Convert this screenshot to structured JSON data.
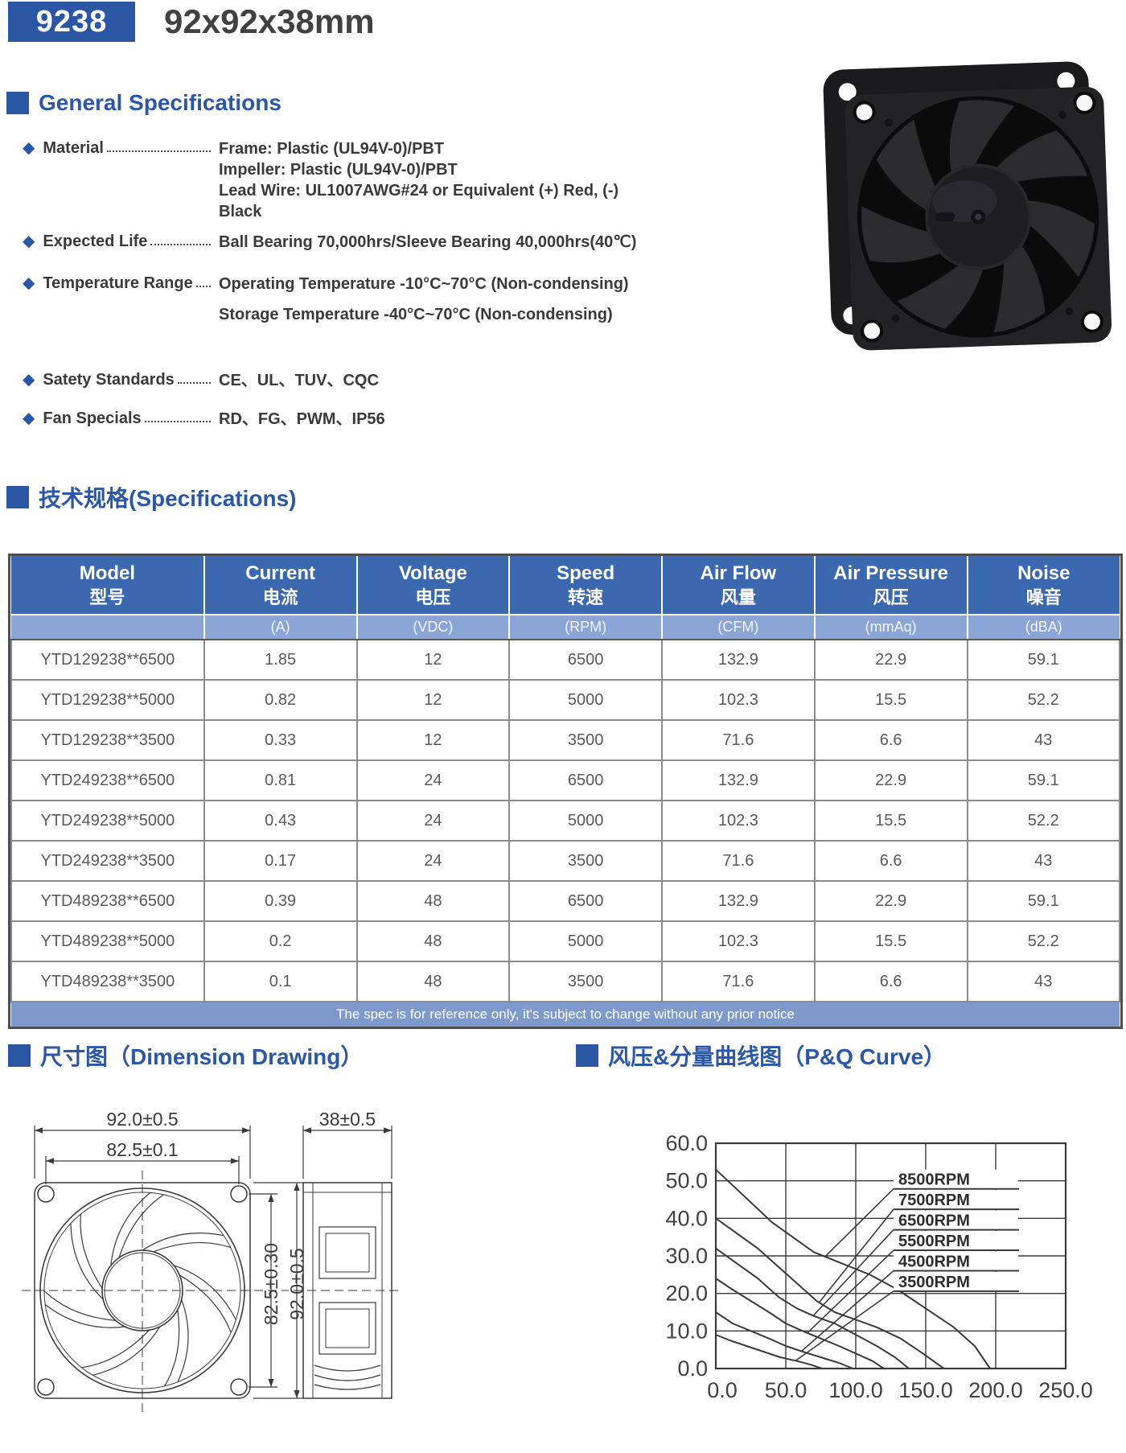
{
  "header": {
    "code": "9238",
    "title": "92x92x38mm"
  },
  "colors": {
    "brand_blue": "#2a56a4",
    "heading_blue": "#2b57a8",
    "table_header_bg": "#3c68b0",
    "units_row_bg": "#8aa5d6",
    "note_row_bg": "#7e99cb",
    "text_dark": "#3a3a3c",
    "table_text": "#58595b"
  },
  "general_specs": {
    "heading": "General Specifications",
    "bullet": "◆",
    "items": [
      {
        "label": "Material",
        "values": [
          "Frame: Plastic (UL94V-0)/PBT",
          "Impeller: Plastic (UL94V-0)/PBT",
          "Lead Wire: UL1007AWG#24 or Equivalent (+) Red, (-) Black"
        ]
      },
      {
        "label": "Expected Life",
        "values": [
          "Ball Bearing 70,000hrs/Sleeve Bearing 40,000hrs(40℃)"
        ]
      },
      {
        "label": "Temperature Range",
        "values": [
          "Operating Temperature -10°C~70°C (Non-condensing)",
          "Storage Temperature -40°C~70°C (Non-condensing)"
        ]
      },
      {
        "label": "Satety Standards",
        "values": [
          "CE、UL、TUV、CQC"
        ]
      },
      {
        "label": "Fan Specials",
        "values": [
          "RD、FG、PWM、IP56"
        ]
      }
    ]
  },
  "spec_table": {
    "heading": "技术规格(Specifications)",
    "columns": [
      {
        "en": "Model",
        "cn": "型号",
        "unit": ""
      },
      {
        "en": "Current",
        "cn": "电流",
        "unit": "(A)"
      },
      {
        "en": "Voltage",
        "cn": "电压",
        "unit": "(VDC)"
      },
      {
        "en": "Speed",
        "cn": "转速",
        "unit": "(RPM)"
      },
      {
        "en": "Air Flow",
        "cn": "风量",
        "unit": "(CFM)"
      },
      {
        "en": "Air Pressure",
        "cn": "风压",
        "unit": "(mmAq)"
      },
      {
        "en": "Noise",
        "cn": "噪音",
        "unit": "(dBA)"
      }
    ],
    "rows": [
      [
        "YTD129238**6500",
        "1.85",
        "12",
        "6500",
        "132.9",
        "22.9",
        "59.1"
      ],
      [
        "YTD129238**5000",
        "0.82",
        "12",
        "5000",
        "102.3",
        "15.5",
        "52.2"
      ],
      [
        "YTD129238**3500",
        "0.33",
        "12",
        "3500",
        "71.6",
        "6.6",
        "43"
      ],
      [
        "YTD249238**6500",
        "0.81",
        "24",
        "6500",
        "132.9",
        "22.9",
        "59.1"
      ],
      [
        "YTD249238**5000",
        "0.43",
        "24",
        "5000",
        "102.3",
        "15.5",
        "52.2"
      ],
      [
        "YTD249238**3500",
        "0.17",
        "24",
        "3500",
        "71.6",
        "6.6",
        "43"
      ],
      [
        "YTD489238**6500",
        "0.39",
        "48",
        "6500",
        "132.9",
        "22.9",
        "59.1"
      ],
      [
        "YTD489238**5000",
        "0.2",
        "48",
        "5000",
        "102.3",
        "15.5",
        "52.2"
      ],
      [
        "YTD489238**3500",
        "0.1",
        "48",
        "3500",
        "71.6",
        "6.6",
        "43"
      ]
    ],
    "note": "The spec is for reference only, it's subject to change without any prior notice"
  },
  "dimension_drawing": {
    "heading": "尺寸图（Dimension Drawing）",
    "labels": {
      "width": "92.0±0.5",
      "hole_pitch": "82.5±0.1",
      "hole_pitch_v": "82.5±0.30",
      "height": "92.0±0.5",
      "depth": "38±0.5"
    }
  },
  "pq_curve": {
    "heading": "风压&分量曲线图（P&Q Curve）"
  },
  "chart_data": {
    "type": "line",
    "title": "",
    "xlabel": "",
    "ylabel": "",
    "xlim": [
      0,
      250
    ],
    "ylim": [
      0,
      60
    ],
    "x_ticks": [
      0,
      50,
      100,
      150,
      200,
      250
    ],
    "y_ticks": [
      0,
      10,
      20,
      30,
      40,
      50,
      60
    ],
    "grid": true,
    "legend_position": "inside-top-right",
    "series": [
      {
        "name": "8500RPM",
        "points": [
          [
            0,
            53
          ],
          [
            20,
            46
          ],
          [
            40,
            39
          ],
          [
            55,
            35
          ],
          [
            70,
            31
          ],
          [
            90,
            28
          ],
          [
            110,
            25
          ],
          [
            130,
            21
          ],
          [
            150,
            16
          ],
          [
            170,
            11
          ],
          [
            185,
            6
          ],
          [
            196,
            0
          ]
        ]
      },
      {
        "name": "7500RPM",
        "points": [
          [
            0,
            40
          ],
          [
            15,
            36
          ],
          [
            30,
            32
          ],
          [
            45,
            27
          ],
          [
            60,
            22
          ],
          [
            72,
            18
          ],
          [
            85,
            15
          ],
          [
            100,
            13
          ],
          [
            115,
            11
          ],
          [
            132,
            8
          ],
          [
            148,
            4
          ],
          [
            163,
            0
          ]
        ]
      },
      {
        "name": "6500RPM",
        "points": [
          [
            0,
            32
          ],
          [
            15,
            28
          ],
          [
            30,
            24
          ],
          [
            45,
            19
          ],
          [
            58,
            16
          ],
          [
            70,
            14
          ],
          [
            85,
            12
          ],
          [
            100,
            9
          ],
          [
            115,
            6
          ],
          [
            128,
            3
          ],
          [
            138,
            0
          ]
        ]
      },
      {
        "name": "5500RPM",
        "points": [
          [
            0,
            24
          ],
          [
            12,
            21
          ],
          [
            25,
            18
          ],
          [
            38,
            15
          ],
          [
            50,
            12
          ],
          [
            62,
            10
          ],
          [
            75,
            8
          ],
          [
            88,
            6
          ],
          [
            100,
            4
          ],
          [
            112,
            2
          ],
          [
            120,
            0
          ]
        ]
      },
      {
        "name": "4500RPM",
        "points": [
          [
            0,
            15
          ],
          [
            12,
            12
          ],
          [
            25,
            10
          ],
          [
            38,
            8
          ],
          [
            50,
            6
          ],
          [
            62,
            4.5
          ],
          [
            75,
            3
          ],
          [
            88,
            1.5
          ],
          [
            98,
            0
          ]
        ]
      },
      {
        "name": "3500RPM",
        "points": [
          [
            0,
            9
          ],
          [
            10,
            7.5
          ],
          [
            22,
            6
          ],
          [
            34,
            4.5
          ],
          [
            46,
            3
          ],
          [
            58,
            2
          ],
          [
            68,
            1
          ],
          [
            76,
            0
          ]
        ]
      }
    ]
  }
}
